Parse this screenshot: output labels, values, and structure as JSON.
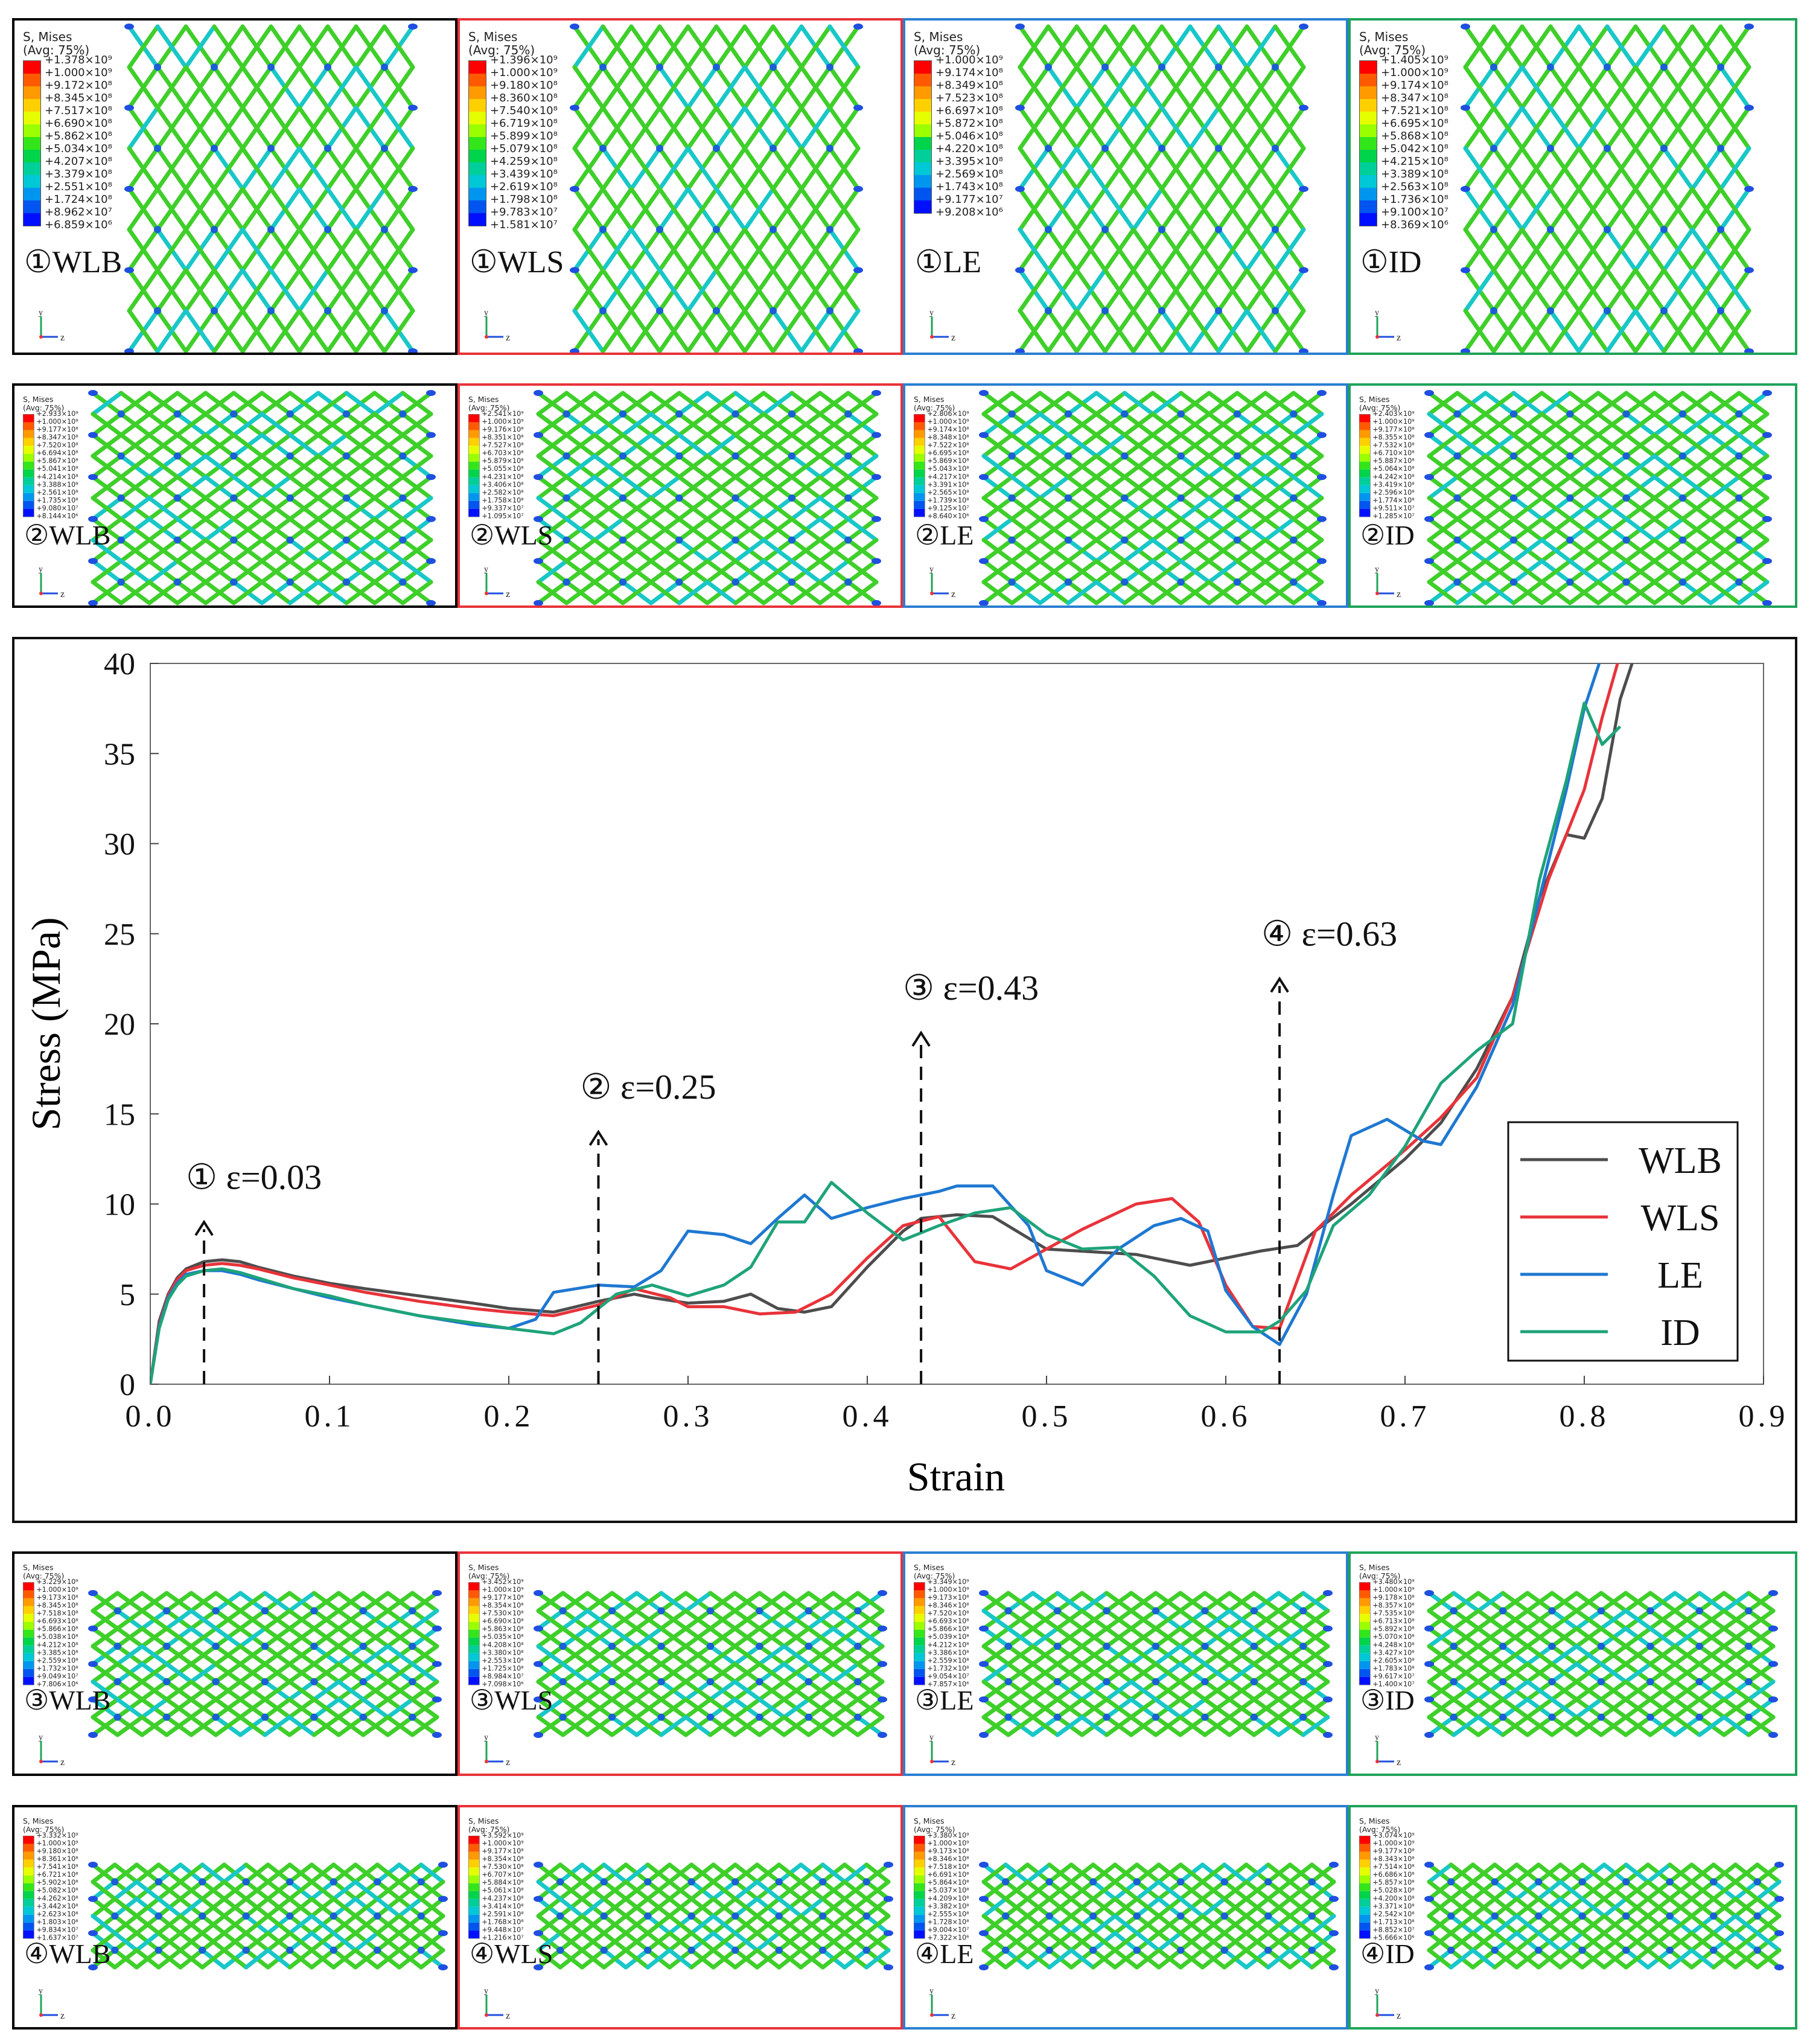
{
  "legend_header": "S, Mises\n(Avg: 75%)",
  "rows": [
    {
      "step": "①",
      "panels": [
        {
          "label": "①WLB",
          "color": "#000000",
          "ticks": [
            "+1.378×10⁹",
            "+1.000×10⁹",
            "+9.172×10⁸",
            "+8.345×10⁸",
            "+7.517×10⁸",
            "+6.690×10⁸",
            "+5.862×10⁸",
            "+5.034×10⁸",
            "+4.207×10⁸",
            "+3.379×10⁸",
            "+2.551×10⁸",
            "+1.724×10⁸",
            "+8.962×10⁷",
            "+6.859×10⁶"
          ]
        },
        {
          "label": "①WLS",
          "color": "#e8333a",
          "ticks": [
            "+1.396×10⁹",
            "+1.000×10⁹",
            "+9.180×10⁸",
            "+8.360×10⁸",
            "+7.540×10⁸",
            "+6.719×10⁸",
            "+5.899×10⁸",
            "+5.079×10⁸",
            "+4.259×10⁸",
            "+3.439×10⁸",
            "+2.619×10⁸",
            "+1.798×10⁸",
            "+9.783×10⁷",
            "+1.581×10⁷"
          ]
        },
        {
          "label": "①LE",
          "color": "#2b7fd1",
          "ticks": [
            "+1.000×10⁹",
            "+9.174×10⁸",
            "+8.349×10⁸",
            "+7.523×10⁸",
            "+6.697×10⁸",
            "+5.872×10⁸",
            "+5.046×10⁸",
            "+4.220×10⁸",
            "+3.395×10⁸",
            "+2.569×10⁸",
            "+1.743×10⁸",
            "+9.177×10⁷",
            "+9.208×10⁶"
          ]
        },
        {
          "label": "①ID",
          "color": "#1fa35a",
          "ticks": [
            "+1.405×10⁹",
            "+1.000×10⁹",
            "+9.174×10⁸",
            "+8.347×10⁸",
            "+7.521×10⁸",
            "+6.695×10⁸",
            "+5.868×10⁸",
            "+5.042×10⁸",
            "+4.215×10⁸",
            "+3.389×10⁸",
            "+2.563×10⁸",
            "+1.736×10⁸",
            "+9.100×10⁷",
            "+8.369×10⁶"
          ]
        }
      ]
    },
    {
      "step": "②",
      "panels": [
        {
          "label": "②WLB",
          "color": "#000000",
          "ticks": [
            "+2.933×10⁹",
            "+1.000×10⁹",
            "+9.177×10⁸",
            "+8.347×10⁸",
            "+7.520×10⁸",
            "+6.694×10⁸",
            "+5.867×10⁸",
            "+5.041×10⁸",
            "+4.214×10⁸",
            "+3.388×10⁸",
            "+2.561×10⁸",
            "+1.735×10⁸",
            "+9.080×10⁷",
            "+8.144×10⁶"
          ]
        },
        {
          "label": "②WLS",
          "color": "#e8333a",
          "ticks": [
            "+2.541×10⁹",
            "+1.000×10⁹",
            "+9.176×10⁸",
            "+8.351×10⁸",
            "+7.527×10⁸",
            "+6.703×10⁸",
            "+5.879×10⁸",
            "+5.055×10⁸",
            "+4.231×10⁸",
            "+3.406×10⁸",
            "+2.582×10⁸",
            "+1.758×10⁸",
            "+9.337×10⁷",
            "+1.095×10⁷"
          ]
        },
        {
          "label": "②LE",
          "color": "#2b7fd1",
          "ticks": [
            "+2.806×10⁹",
            "+1.000×10⁹",
            "+9.174×10⁸",
            "+8.348×10⁸",
            "+7.522×10⁸",
            "+6.695×10⁸",
            "+5.869×10⁸",
            "+5.043×10⁸",
            "+4.217×10⁸",
            "+3.391×10⁸",
            "+2.565×10⁸",
            "+1.739×10⁸",
            "+9.125×10⁷",
            "+8.640×10⁶"
          ]
        },
        {
          "label": "②ID",
          "color": "#1fa35a",
          "ticks": [
            "+2.403×10⁹",
            "+1.000×10⁹",
            "+9.177×10⁸",
            "+8.355×10⁸",
            "+7.532×10⁸",
            "+6.710×10⁸",
            "+5.887×10⁸",
            "+5.064×10⁸",
            "+4.242×10⁸",
            "+3.419×10⁸",
            "+2.596×10⁸",
            "+1.774×10⁸",
            "+9.511×10⁷",
            "+1.285×10⁷"
          ]
        }
      ]
    },
    {
      "step": "③",
      "panels": [
        {
          "label": "③WLB",
          "color": "#000000",
          "ticks": [
            "+3.229×10⁹",
            "+1.000×10⁹",
            "+9.173×10⁸",
            "+8.345×10⁸",
            "+7.518×10⁸",
            "+6.693×10⁸",
            "+5.866×10⁸",
            "+5.038×10⁸",
            "+4.212×10⁸",
            "+3.385×10⁸",
            "+2.559×10⁸",
            "+1.732×10⁸",
            "+9.049×10⁷",
            "+7.806×10⁶"
          ]
        },
        {
          "label": "③WLS",
          "color": "#e8333a",
          "ticks": [
            "+3.452×10⁹",
            "+1.000×10⁹",
            "+9.177×10⁸",
            "+8.354×10⁸",
            "+7.530×10⁸",
            "+6.690×10⁸",
            "+5.863×10⁸",
            "+5.035×10⁸",
            "+4.208×10⁸",
            "+3.380×10⁸",
            "+2.553×10⁸",
            "+1.725×10⁸",
            "+8.984×10⁷",
            "+7.098×10⁶"
          ]
        },
        {
          "label": "③LE",
          "color": "#2b7fd1",
          "ticks": [
            "+3.349×10⁹",
            "+1.000×10⁹",
            "+9.173×10⁸",
            "+8.346×10⁸",
            "+7.520×10⁸",
            "+6.693×10⁸",
            "+5.866×10⁸",
            "+5.039×10⁸",
            "+4.212×10⁸",
            "+3.386×10⁸",
            "+2.559×10⁸",
            "+1.732×10⁸",
            "+9.054×10⁷",
            "+7.857×10⁶"
          ]
        },
        {
          "label": "③ID",
          "color": "#1fa35a",
          "ticks": [
            "+3.480×10⁹",
            "+1.000×10⁹",
            "+9.178×10⁸",
            "+8.357×10⁸",
            "+7.535×10⁸",
            "+6.713×10⁸",
            "+5.892×10⁸",
            "+5.070×10⁸",
            "+4.248×10⁸",
            "+3.427×10⁸",
            "+2.605×10⁸",
            "+1.783×10⁸",
            "+9.617×10⁷",
            "+1.400×10⁷"
          ]
        }
      ]
    },
    {
      "step": "④",
      "panels": [
        {
          "label": "④WLB",
          "color": "#000000",
          "ticks": [
            "+3.332×10⁹",
            "+1.000×10⁹",
            "+9.180×10⁸",
            "+8.361×10⁸",
            "+7.541×10⁸",
            "+6.721×10⁸",
            "+5.902×10⁸",
            "+5.082×10⁸",
            "+4.262×10⁸",
            "+3.442×10⁸",
            "+2.623×10⁸",
            "+1.803×10⁸",
            "+9.834×10⁷",
            "+1.637×10⁷"
          ]
        },
        {
          "label": "④WLS",
          "color": "#e8333a",
          "ticks": [
            "+3.592×10⁹",
            "+1.000×10⁹",
            "+9.177×10⁸",
            "+8.354×10⁸",
            "+7.530×10⁸",
            "+6.707×10⁸",
            "+5.884×10⁸",
            "+5.061×10⁸",
            "+4.237×10⁸",
            "+3.414×10⁸",
            "+2.591×10⁸",
            "+1.768×10⁸",
            "+9.448×10⁷",
            "+1.216×10⁷"
          ]
        },
        {
          "label": "④LE",
          "color": "#2b7fd1",
          "ticks": [
            "+3.380×10⁹",
            "+1.000×10⁹",
            "+9.173×10⁸",
            "+8.346×10⁸",
            "+7.518×10⁸",
            "+6.691×10⁸",
            "+5.864×10⁸",
            "+5.037×10⁸",
            "+4.209×10⁸",
            "+3.382×10⁸",
            "+2.555×10⁸",
            "+1.728×10⁸",
            "+9.004×10⁷",
            "+7.322×10⁶"
          ]
        },
        {
          "label": "④ID",
          "color": "#1fa35a",
          "ticks": [
            "+3.074×10⁹",
            "+1.000×10⁹",
            "+9.177×10⁸",
            "+8.343×10⁸",
            "+7.514×10⁸",
            "+6.686×10⁸",
            "+5.857×10⁸",
            "+5.028×10⁸",
            "+4.200×10⁸",
            "+3.371×10⁸",
            "+2.542×10⁸",
            "+1.713×10⁸",
            "+8.852×10⁷",
            "+5.666×10⁶"
          ]
        }
      ]
    }
  ],
  "colorbar_colors": [
    "#ff0000",
    "#ff5a00",
    "#ff9a00",
    "#ffd000",
    "#e6ff00",
    "#9cff00",
    "#33e61a",
    "#00d44a",
    "#00cf9a",
    "#00c8d6",
    "#0096f0",
    "#0055f0",
    "#0010ff"
  ],
  "chart_data": {
    "type": "line",
    "xlabel": "Strain",
    "ylabel": "Stress (MPa)",
    "xlim": [
      0,
      0.9
    ],
    "ylim": [
      0,
      40
    ],
    "xticks": [
      "0.0",
      "0.1",
      "0.2",
      "0.3",
      "0.4",
      "0.5",
      "0.6",
      "0.7",
      "0.8",
      "0.9"
    ],
    "yticks": [
      "0",
      "5",
      "10",
      "15",
      "20",
      "25",
      "30",
      "35",
      "40"
    ],
    "legend": [
      "WLB",
      "WLS",
      "LE",
      "ID"
    ],
    "annotations": [
      {
        "text": "① ε=0.03",
        "x": 0.03,
        "y_top": 9
      },
      {
        "text": "② ε=0.25",
        "x": 0.25,
        "y_top": 14
      },
      {
        "text": "③ ε=0.43",
        "x": 0.43,
        "y_top": 19.5
      },
      {
        "text": "④ ε=0.63",
        "x": 0.63,
        "y_top": 22.5
      }
    ],
    "series": [
      {
        "name": "WLB",
        "color": "#4d4d4d",
        "x": [
          0,
          0.005,
          0.01,
          0.015,
          0.02,
          0.03,
          0.04,
          0.05,
          0.06,
          0.08,
          0.1,
          0.12,
          0.15,
          0.18,
          0.2,
          0.225,
          0.25,
          0.27,
          0.28,
          0.3,
          0.32,
          0.335,
          0.35,
          0.365,
          0.38,
          0.4,
          0.42,
          0.43,
          0.45,
          0.47,
          0.5,
          0.55,
          0.58,
          0.6,
          0.62,
          0.64,
          0.65,
          0.67,
          0.7,
          0.72,
          0.74,
          0.76,
          0.775,
          0.79,
          0.8,
          0.81,
          0.82,
          0.83
        ],
        "y": [
          0,
          3.5,
          5.0,
          5.9,
          6.4,
          6.8,
          6.9,
          6.8,
          6.5,
          6.0,
          5.6,
          5.3,
          4.9,
          4.5,
          4.2,
          4.0,
          4.6,
          5.0,
          4.8,
          4.5,
          4.6,
          5.0,
          4.2,
          4.0,
          4.3,
          6.5,
          8.5,
          9.2,
          9.4,
          9.3,
          7.5,
          7.2,
          6.6,
          7.0,
          7.4,
          7.7,
          8.5,
          10.0,
          12.5,
          14.5,
          17.5,
          21.5,
          27.0,
          30.5,
          30.3,
          32.5,
          38.0,
          41.0
        ]
      },
      {
        "name": "WLS",
        "color": "#e8333a",
        "x": [
          0,
          0.005,
          0.01,
          0.015,
          0.02,
          0.03,
          0.04,
          0.05,
          0.06,
          0.08,
          0.1,
          0.12,
          0.15,
          0.18,
          0.2,
          0.225,
          0.25,
          0.27,
          0.29,
          0.3,
          0.32,
          0.34,
          0.36,
          0.38,
          0.4,
          0.42,
          0.44,
          0.46,
          0.48,
          0.5,
          0.52,
          0.55,
          0.57,
          0.585,
          0.6,
          0.615,
          0.63,
          0.65,
          0.67,
          0.7,
          0.72,
          0.74,
          0.76,
          0.78,
          0.8,
          0.81,
          0.82
        ],
        "y": [
          0,
          3.3,
          4.9,
          5.8,
          6.3,
          6.6,
          6.7,
          6.6,
          6.4,
          5.9,
          5.5,
          5.1,
          4.6,
          4.2,
          4.0,
          3.8,
          4.4,
          5.3,
          4.8,
          4.3,
          4.3,
          3.9,
          4.0,
          5.0,
          7.0,
          8.8,
          9.3,
          6.8,
          6.4,
          7.5,
          8.6,
          10.0,
          10.3,
          9.0,
          5.5,
          3.2,
          3.1,
          8.5,
          10.5,
          13.0,
          14.8,
          17.0,
          21.5,
          28.0,
          33.0,
          37.0,
          40.5
        ]
      },
      {
        "name": "LE",
        "color": "#1f78d1",
        "x": [
          0,
          0.005,
          0.01,
          0.015,
          0.02,
          0.03,
          0.04,
          0.05,
          0.06,
          0.08,
          0.1,
          0.12,
          0.15,
          0.18,
          0.2,
          0.215,
          0.225,
          0.25,
          0.27,
          0.285,
          0.3,
          0.32,
          0.335,
          0.35,
          0.365,
          0.38,
          0.4,
          0.42,
          0.44,
          0.45,
          0.47,
          0.49,
          0.5,
          0.52,
          0.54,
          0.56,
          0.575,
          0.59,
          0.6,
          0.615,
          0.63,
          0.645,
          0.66,
          0.67,
          0.69,
          0.71,
          0.72,
          0.74,
          0.76,
          0.78,
          0.79,
          0.8,
          0.81
        ],
        "y": [
          0,
          3.2,
          4.8,
          5.6,
          6.1,
          6.3,
          6.3,
          6.1,
          5.8,
          5.3,
          4.8,
          4.4,
          3.8,
          3.3,
          3.1,
          3.6,
          5.1,
          5.5,
          5.4,
          6.3,
          8.5,
          8.3,
          7.8,
          9.2,
          10.5,
          9.2,
          9.8,
          10.3,
          10.7,
          11.0,
          11.0,
          8.8,
          6.3,
          5.5,
          7.5,
          8.8,
          9.2,
          8.5,
          5.2,
          3.2,
          2.2,
          5.0,
          10.5,
          13.8,
          14.7,
          13.5,
          13.3,
          16.5,
          21.0,
          29.0,
          33.0,
          37.5,
          40.5
        ]
      },
      {
        "name": "ID",
        "color": "#1fa37a",
        "x": [
          0,
          0.005,
          0.01,
          0.015,
          0.02,
          0.03,
          0.04,
          0.05,
          0.06,
          0.08,
          0.1,
          0.12,
          0.15,
          0.18,
          0.2,
          0.225,
          0.24,
          0.26,
          0.28,
          0.3,
          0.32,
          0.335,
          0.35,
          0.365,
          0.38,
          0.4,
          0.42,
          0.44,
          0.46,
          0.48,
          0.5,
          0.52,
          0.54,
          0.56,
          0.58,
          0.6,
          0.62,
          0.63,
          0.645,
          0.66,
          0.68,
          0.7,
          0.72,
          0.74,
          0.76,
          0.775,
          0.79,
          0.8,
          0.81,
          0.82
        ],
        "y": [
          0,
          3.1,
          4.7,
          5.5,
          6.0,
          6.3,
          6.4,
          6.2,
          5.9,
          5.3,
          4.9,
          4.4,
          3.8,
          3.4,
          3.1,
          2.8,
          3.4,
          5.0,
          5.5,
          4.9,
          5.5,
          6.5,
          9.0,
          9.0,
          11.2,
          9.5,
          8.0,
          8.8,
          9.5,
          9.8,
          8.3,
          7.5,
          7.6,
          6.0,
          3.8,
          2.9,
          2.9,
          3.5,
          5.2,
          8.8,
          10.5,
          13.2,
          16.7,
          18.5,
          20.0,
          28.0,
          33.5,
          37.8,
          35.5,
          36.5
        ]
      }
    ]
  }
}
